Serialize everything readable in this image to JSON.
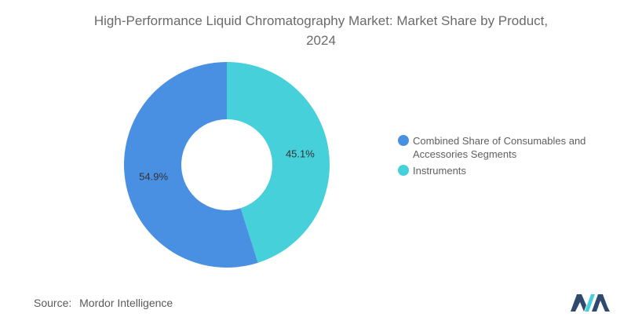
{
  "chart_data": {
    "type": "pie",
    "variant": "donut",
    "title_line1": "High-Performance Liquid Chromatography Market: Market Share by Product,",
    "title_line2": "2024",
    "series": [
      {
        "name": "Combined Share of Consumables and Accessories Segments",
        "value": 54.9,
        "label": "54.9%",
        "color": "#4a90e2"
      },
      {
        "name": "Instruments",
        "value": 45.1,
        "label": "45.1%",
        "color": "#45d0da"
      }
    ],
    "legend_position": "right"
  },
  "legend": {
    "items": [
      {
        "label": "Combined Share of Consumables and Accessories Segments",
        "color": "#4a90e2"
      },
      {
        "label": "Instruments",
        "color": "#45d0da"
      }
    ]
  },
  "source": {
    "label": "Source:",
    "text": "Mordor Intelligence"
  },
  "logo": {
    "icon": "mordor-intelligence-logo",
    "color": "#2f4a6d",
    "accent": "#45d0da"
  }
}
